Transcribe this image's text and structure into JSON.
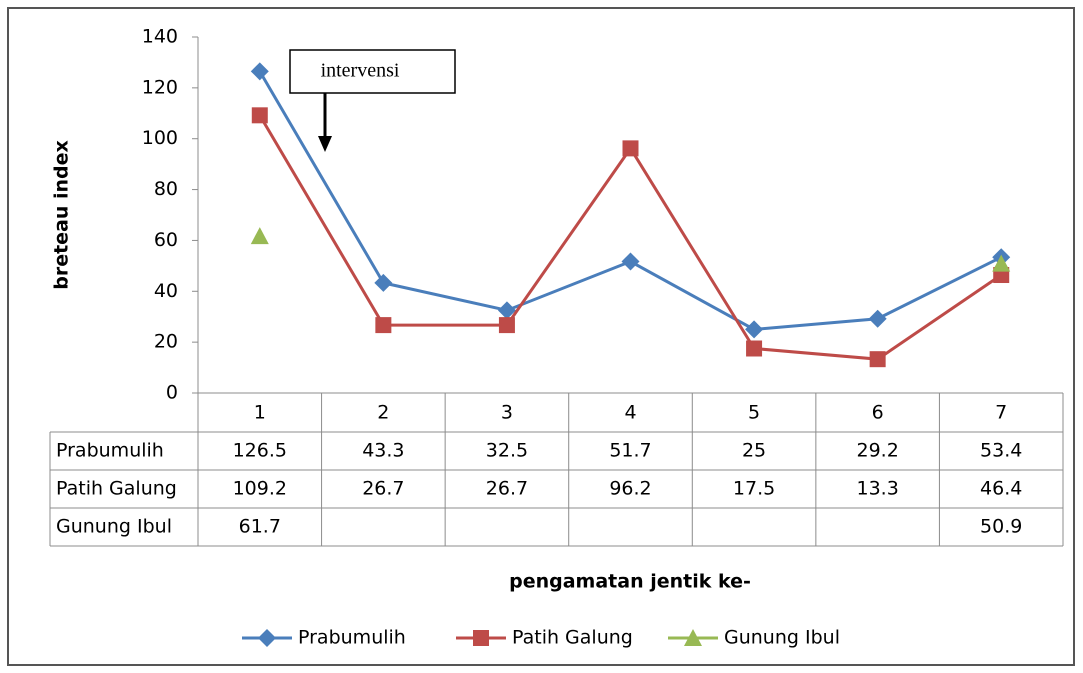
{
  "chart_data": {
    "type": "line",
    "y_label": "breteau index",
    "x_label": "pengamatan jentik ke-",
    "annotation": "intervensi",
    "categories": [
      "1",
      "2",
      "3",
      "4",
      "5",
      "6",
      "7"
    ],
    "series": [
      {
        "name": "Prabumulih",
        "color": "#4a7ebb",
        "marker": "diamond",
        "values": [
          126.5,
          43.3,
          32.5,
          51.7,
          25,
          29.2,
          53.4
        ]
      },
      {
        "name": "Patih Galung",
        "color": "#be4b48",
        "marker": "square",
        "values": [
          109.2,
          26.7,
          26.7,
          96.2,
          17.5,
          13.3,
          46.4
        ]
      },
      {
        "name": "Gunung Ibul",
        "color": "#98b954",
        "marker": "triangle",
        "values": [
          61.7,
          null,
          null,
          null,
          null,
          null,
          50.9
        ]
      }
    ],
    "ylim": [
      0,
      140
    ],
    "yticks": [
      0,
      20,
      40,
      60,
      80,
      100,
      120,
      140
    ],
    "grid": false,
    "legend": "bottom",
    "data_table": true
  }
}
